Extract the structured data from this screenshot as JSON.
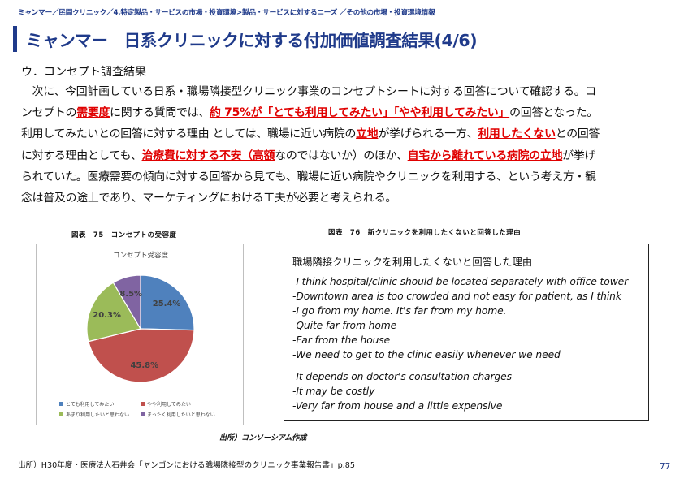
{
  "breadcrumb": "ミャンマー／民間クリニック／4.特定製品・サービスの市場・投資環境>製品・サービスに対するニーズ ／その他の市場・投資環境情報",
  "title": "ミャンマー　日系クリニックに対する付加価値調査結果(4/6)",
  "subhead": "ウ．コンセプト調査結果",
  "paragraph": {
    "l1": "　次に、今回計画している日系・職場隣接型クリニック事業のコンセプトシートに対する回答について確認する。コ",
    "l2a": "ンセプトの",
    "l2b": "需要度",
    "l2c": "に関する質問では、",
    "l2d": "約 75%が「とても利用してみたい」「やや利用してみたい」",
    "l2e": "の回答となった。",
    "l3a": "利用してみたいとの回答に対する理由 としては、職場に近い病院の",
    "l3b": "立地",
    "l3c": "が挙げられる一方、",
    "l3d": "利用したくない",
    "l3e": "との回答",
    "l4a": "に対する理由としても、",
    "l4b": "治療費に対する不安（高額",
    "l4c": "なのではないか）のほか、",
    "l4d": "自宅から離れている病院の立地",
    "l4e": "が挙げ",
    "l5": "られていた。医療需要の傾向に対する回答から見ても、職場に近い病院やクリニックを利用する、という考え方・観",
    "l6": "念は普及の途上であり、マーケティングにおける工夫が必要と考えられる。"
  },
  "figure75": {
    "caption": "図表　75　コンセプトの受容度"
  },
  "figure76": {
    "caption": "図表　76　新クリニックを利用したくないと回答した理由",
    "box_title": "職場隣接クリニックを利用したくないと回答した理由",
    "items": [
      "-I think hospital/clinic should be located separately with office tower",
      "-Downtown area is too crowded and not easy for patient, as I think",
      "-I go from my home. It's far from my home.",
      "-Quite far from home",
      "-Far from the house",
      "-We need to get to the clinic easily whenever we need",
      "-It depends on doctor's consultation charges",
      "-It may be costly",
      "-Very far from house and a little expensive"
    ]
  },
  "chart_data": {
    "type": "pie",
    "title": "コンセプト受容度",
    "categories": [
      "とても利用してみたい",
      "やや利用してみたい",
      "あまり利用したいと思わない",
      "まったく利用したいと思わない"
    ],
    "values": [
      25.4,
      45.8,
      20.3,
      8.5
    ],
    "labels": [
      "25.4%",
      "45.8%",
      "20.3%",
      "8.5%"
    ],
    "colors": [
      "#4f81bd",
      "#c0504d",
      "#9bbb59",
      "#8064a2"
    ],
    "legend_position": "bottom"
  },
  "source_note": "出所）コンソーシアム作成",
  "footer_note": "出所）H30年度・医療法人石井会「ヤンゴンにおける職場隣接型のクリニック事業報告書」p.85",
  "page_number": "77"
}
